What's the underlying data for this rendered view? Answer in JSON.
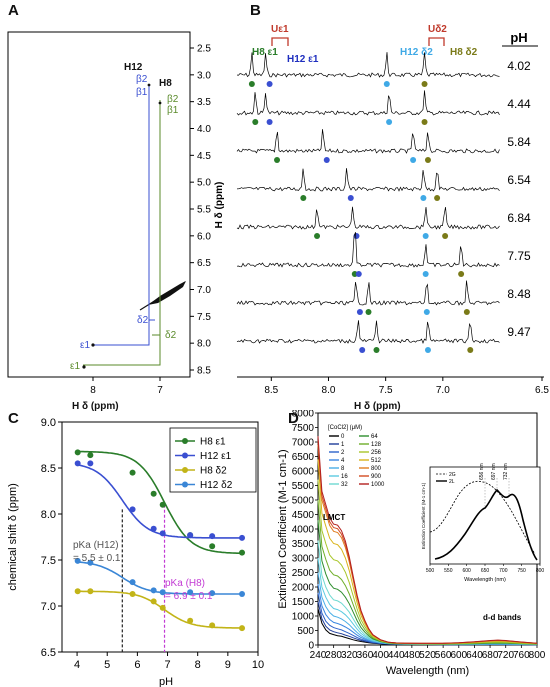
{
  "panels": {
    "a": {
      "label": "A",
      "xlabel": "H δ (ppm)",
      "ylabel": "H δ (ppm)",
      "x_ticks": [
        "8",
        "7"
      ],
      "y_ticks": [
        "2.5",
        "3.0",
        "3.5",
        "4.0",
        "4.5",
        "5.0",
        "5.5",
        "6.0",
        "6.5",
        "7.0",
        "7.5",
        "8.0",
        "8.5"
      ],
      "annotations": {
        "h12": "H12",
        "h8": "H8",
        "b2_h12": "β2",
        "b1_h12": "β1",
        "b2_h8": "β2",
        "b1_h8": "β1",
        "d2_h12": "δ2",
        "d2_h8": "δ2",
        "e1_h12": "ε1",
        "e1_h8": "ε1"
      }
    },
    "b": {
      "label": "B",
      "xlabel": "H δ (ppm)",
      "x_ticks": [
        "8.5",
        "8.0",
        "7.5",
        "7.0",
        "6.5"
      ],
      "ph_header": "pH",
      "ph_values": [
        "4.02",
        "4.44",
        "5.84",
        "6.54",
        "6.84",
        "7.75",
        "8.48",
        "9.47"
      ],
      "top_labels": {
        "h8e1": "H8 ε1",
        "h12e1": "H12 ε1",
        "ue1": "Uε1",
        "h12d2": "H12 δ2",
        "h8d2": "H8 δ2",
        "ud2": "Uδ2"
      }
    },
    "c": {
      "label": "C",
      "pka_h12": "pKa (H12)",
      "pka_h12_value": "= 5.5 ± 0.1",
      "pka_h8": "pKa (H8)",
      "pka_h8_value": "= 6.9 ± 0.1"
    },
    "d": {
      "label": "D",
      "lmct": "LMCT",
      "dd_bands": "d-d bands",
      "legend_title": "[CoCl2] (μM)",
      "legend_left": [
        "0",
        "1",
        "2",
        "4",
        "8",
        "16",
        "32"
      ],
      "legend_right": [
        "64",
        "128",
        "256",
        "512",
        "800",
        "900",
        "1000"
      ],
      "inset": {
        "xlabel": "Wavelength (nm)",
        "ylabel": "Extinction Coefficient (M-1 cm-1)",
        "x_ticks": [
          "500",
          "550",
          "600",
          "650",
          "700",
          "750",
          "800"
        ],
        "legend": [
          "2G",
          "2L"
        ],
        "peak_labels": [
          "656 nm",
          "697 nm",
          "732 nm"
        ]
      }
    }
  },
  "colors": {
    "h8e1": "#2a7d2a",
    "h12e1": "#3a4fd1",
    "h8d2": "#c2b418",
    "h12d2": "#3a86d6",
    "olive": "#7a7a18",
    "blue": "#1f2fbf",
    "light_blue": "#3fa9e6",
    "red_bracket": "#c0392b",
    "pka_h8": "#c23bd4"
  },
  "chart_data": [
    {
      "type": "scatter",
      "title": "",
      "xlabel": "pH",
      "ylabel": "chemical shift δ  (ppm)",
      "xlim": [
        3.5,
        10
      ],
      "ylim": [
        6.5,
        9.0
      ],
      "x_ticks": [
        4,
        5,
        6,
        7,
        8,
        9,
        10
      ],
      "y_ticks": [
        6.5,
        7.0,
        7.5,
        8.0,
        8.5,
        9.0
      ],
      "legend_placement": "top-right",
      "x": [
        4.02,
        4.44,
        5.84,
        6.54,
        6.84,
        7.75,
        8.48,
        9.47
      ],
      "series": [
        {
          "name": "H8 ε1",
          "color": "#2a7d2a",
          "values": [
            8.67,
            8.64,
            8.45,
            8.22,
            8.1,
            7.77,
            7.65,
            7.58
          ]
        },
        {
          "name": "H12 ε1",
          "color": "#3a4fd1",
          "values": [
            8.55,
            8.55,
            8.05,
            7.84,
            7.79,
            7.77,
            7.76,
            7.74
          ]
        },
        {
          "name": "H8 δ2",
          "color": "#c2b418",
          "values": [
            7.16,
            7.16,
            7.13,
            7.05,
            6.98,
            6.84,
            6.79,
            6.76
          ]
        },
        {
          "name": "H12 δ2",
          "color": "#3a86d6",
          "values": [
            7.49,
            7.47,
            7.26,
            7.17,
            7.15,
            7.15,
            7.14,
            7.13
          ]
        }
      ]
    },
    {
      "type": "line",
      "title": "",
      "xlabel": "Wavelength (nm)",
      "ylabel": "Extinction Coefficient (M-1 cm-1)",
      "xlim": [
        240,
        800
      ],
      "ylim": [
        0,
        8000
      ],
      "x_ticks": [
        240,
        280,
        320,
        360,
        400,
        440,
        480,
        520,
        560,
        600,
        640,
        680,
        720,
        760,
        800
      ],
      "y_ticks": [
        0,
        500,
        1000,
        1500,
        2000,
        2500,
        3000,
        3500,
        4000,
        4500,
        5000,
        5500,
        6000,
        6500,
        7000,
        7500,
        8000
      ],
      "x": [
        240,
        250,
        260,
        270,
        280,
        290,
        300,
        310,
        320,
        330,
        340,
        350,
        360,
        370,
        380,
        400,
        420,
        440,
        460,
        500,
        560,
        600,
        640,
        680,
        700,
        720,
        760,
        800
      ],
      "series": [
        {
          "name": "0",
          "color": "#000000",
          "values": [
            1250,
            750,
            520,
            400,
            360,
            320,
            300,
            260,
            220,
            180,
            150,
            120,
            100,
            80,
            60,
            40,
            30,
            25,
            20,
            15,
            10,
            10,
            10,
            10,
            10,
            10,
            10,
            10
          ]
        },
        {
          "name": "1",
          "color": "#1f3d99",
          "values": [
            1500,
            900,
            650,
            520,
            460,
            420,
            390,
            340,
            300,
            250,
            200,
            160,
            130,
            100,
            75,
            50,
            35,
            28,
            22,
            18,
            12,
            12,
            14,
            16,
            16,
            15,
            12,
            10
          ]
        },
        {
          "name": "2",
          "color": "#2d62c9",
          "values": [
            1800,
            1100,
            820,
            680,
            600,
            560,
            520,
            460,
            400,
            330,
            260,
            200,
            160,
            120,
            90,
            60,
            40,
            30,
            25,
            20,
            14,
            15,
            18,
            22,
            24,
            22,
            16,
            12
          ]
        },
        {
          "name": "4",
          "color": "#3a86e0",
          "values": [
            2100,
            1350,
            1050,
            880,
            780,
            740,
            690,
            620,
            540,
            440,
            340,
            260,
            200,
            150,
            110,
            70,
            45,
            33,
            28,
            22,
            16,
            18,
            22,
            28,
            30,
            28,
            20,
            14
          ]
        },
        {
          "name": "8",
          "color": "#49aee6",
          "values": [
            2500,
            1650,
            1320,
            1120,
            1000,
            960,
            900,
            810,
            700,
            560,
            430,
            320,
            240,
            180,
            130,
            80,
            50,
            36,
            30,
            24,
            18,
            20,
            26,
            34,
            36,
            33,
            24,
            16
          ]
        },
        {
          "name": "16",
          "color": "#5ccbe0",
          "values": [
            3000,
            2000,
            1650,
            1400,
            1260,
            1220,
            1150,
            1040,
            900,
            720,
            550,
            400,
            300,
            220,
            150,
            90,
            55,
            40,
            32,
            26,
            20,
            23,
            30,
            40,
            44,
            40,
            28,
            18
          ]
        },
        {
          "name": "32",
          "color": "#6fd9d1",
          "values": [
            3600,
            2400,
            2000,
            1720,
            1560,
            1520,
            1440,
            1300,
            1130,
            900,
            680,
            490,
            360,
            260,
            180,
            100,
            60,
            44,
            36,
            30,
            24,
            28,
            36,
            48,
            52,
            48,
            34,
            22
          ]
        },
        {
          "name": "64",
          "color": "#2f8f2f",
          "values": [
            4300,
            2900,
            2450,
            2120,
            1960,
            1920,
            1820,
            1650,
            1420,
            1130,
            840,
            600,
            440,
            310,
            210,
            115,
            66,
            48,
            40,
            34,
            28,
            34,
            44,
            60,
            66,
            60,
            42,
            26
          ]
        },
        {
          "name": "128",
          "color": "#6fae2a",
          "values": [
            5000,
            3400,
            2950,
            2580,
            2420,
            2380,
            2260,
            2050,
            1760,
            1390,
            1030,
            730,
            530,
            370,
            245,
            130,
            72,
            52,
            44,
            38,
            34,
            42,
            56,
            76,
            84,
            76,
            52,
            32
          ]
        },
        {
          "name": "256",
          "color": "#a9c62a",
          "values": [
            5700,
            3950,
            3500,
            3100,
            2940,
            2900,
            2760,
            2510,
            2150,
            1690,
            1240,
            870,
            630,
            430,
            280,
            145,
            80,
            58,
            50,
            44,
            42,
            52,
            72,
            98,
            108,
            98,
            66,
            40
          ]
        },
        {
          "name": "512",
          "color": "#d9b31a",
          "values": [
            6400,
            4550,
            4100,
            3680,
            3500,
            3460,
            3300,
            3000,
            2560,
            2000,
            1460,
            1020,
            730,
            490,
            315,
            160,
            88,
            64,
            56,
            50,
            50,
            64,
            90,
            124,
            136,
            124,
            84,
            50
          ]
        },
        {
          "name": "800",
          "color": "#e07d1f",
          "values": [
            6900,
            5000,
            4560,
            4120,
            3920,
            3880,
            3700,
            3360,
            2860,
            2230,
            1620,
            1130,
            800,
            535,
            340,
            172,
            94,
            68,
            60,
            54,
            56,
            72,
            102,
            142,
            156,
            142,
            96,
            56
          ]
        },
        {
          "name": "900",
          "color": "#d24b22",
          "values": [
            7050,
            5150,
            4700,
            4250,
            4050,
            4010,
            3820,
            3470,
            2950,
            2300,
            1670,
            1160,
            820,
            548,
            348,
            176,
            96,
            70,
            62,
            56,
            58,
            75,
            106,
            148,
            162,
            148,
            100,
            58
          ]
        },
        {
          "name": "1000",
          "color": "#b3201e",
          "values": [
            7200,
            5300,
            4840,
            4380,
            4170,
            4130,
            3940,
            3580,
            3040,
            2370,
            1720,
            1190,
            840,
            560,
            355,
            180,
            98,
            72,
            64,
            58,
            60,
            78,
            110,
            154,
            168,
            154,
            104,
            60
          ]
        }
      ]
    }
  ]
}
